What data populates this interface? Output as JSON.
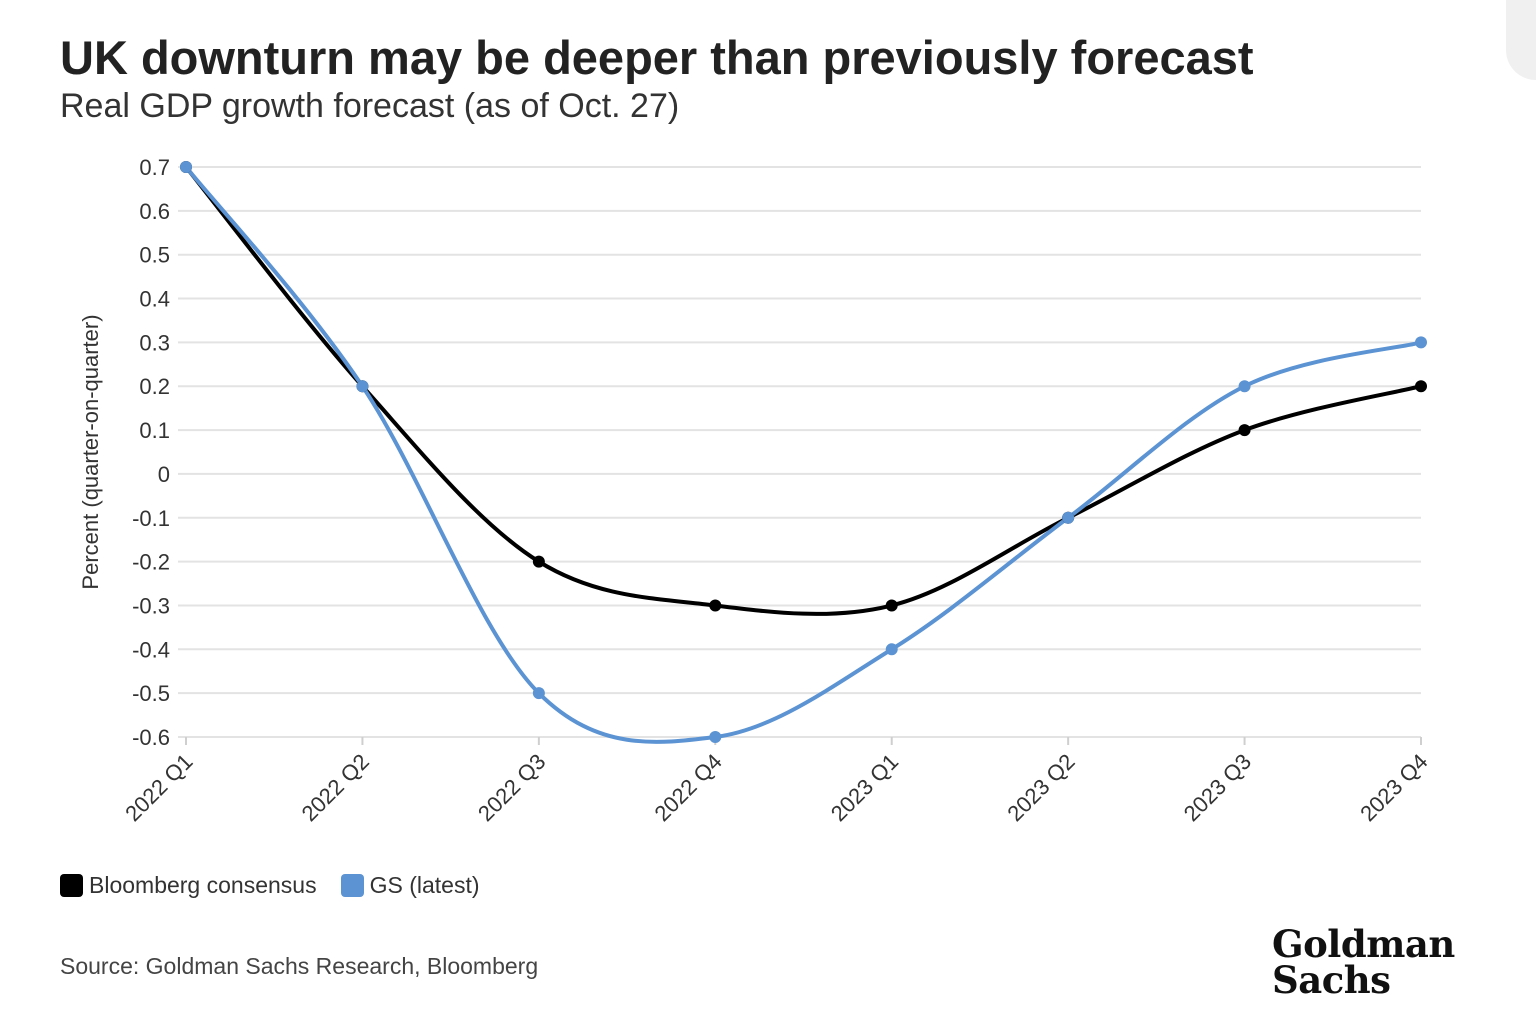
{
  "header": {
    "title": "UK downturn may be deeper than previously forecast",
    "subtitle": "Real GDP growth forecast (as of Oct. 27)"
  },
  "footer": {
    "source": "Source: Goldman Sachs Research, Bloomberg",
    "logo_text": "Goldman Sachs"
  },
  "chart_data": {
    "type": "line",
    "title": "UK downturn may be deeper than previously forecast",
    "subtitle": "Real GDP growth forecast (as of Oct. 27)",
    "xlabel": "",
    "ylabel": "Percent (quarter-on-quarter)",
    "categories": [
      "2022 Q1",
      "2022 Q2",
      "2022 Q3",
      "2022 Q4",
      "2023 Q1",
      "2023 Q2",
      "2023 Q3",
      "2023 Q4"
    ],
    "ylim": [
      -0.6,
      0.7
    ],
    "yticks": [
      0.7,
      0.6,
      0.5,
      0.4,
      0.3,
      0.2,
      0.1,
      0,
      -0.1,
      -0.2,
      -0.3,
      -0.4,
      -0.5,
      -0.6
    ],
    "ytick_labels": [
      "0.7",
      "0.6",
      "0.5",
      "0.4",
      "0.3",
      "0.2",
      "0.1",
      "0",
      "-0.1",
      "-0.2",
      "-0.3",
      "-0.4",
      "-0.5",
      "-0.6"
    ],
    "grid": true,
    "legend_position": "bottom-left",
    "series": [
      {
        "name": "Bloomberg consensus",
        "color": "#000000",
        "values": [
          0.7,
          0.2,
          -0.2,
          -0.3,
          -0.3,
          -0.1,
          0.1,
          0.2
        ]
      },
      {
        "name": "GS (latest)",
        "color": "#5b93d3",
        "values": [
          0.7,
          0.2,
          -0.5,
          -0.6,
          -0.4,
          -0.1,
          0.2,
          0.3
        ]
      }
    ]
  }
}
